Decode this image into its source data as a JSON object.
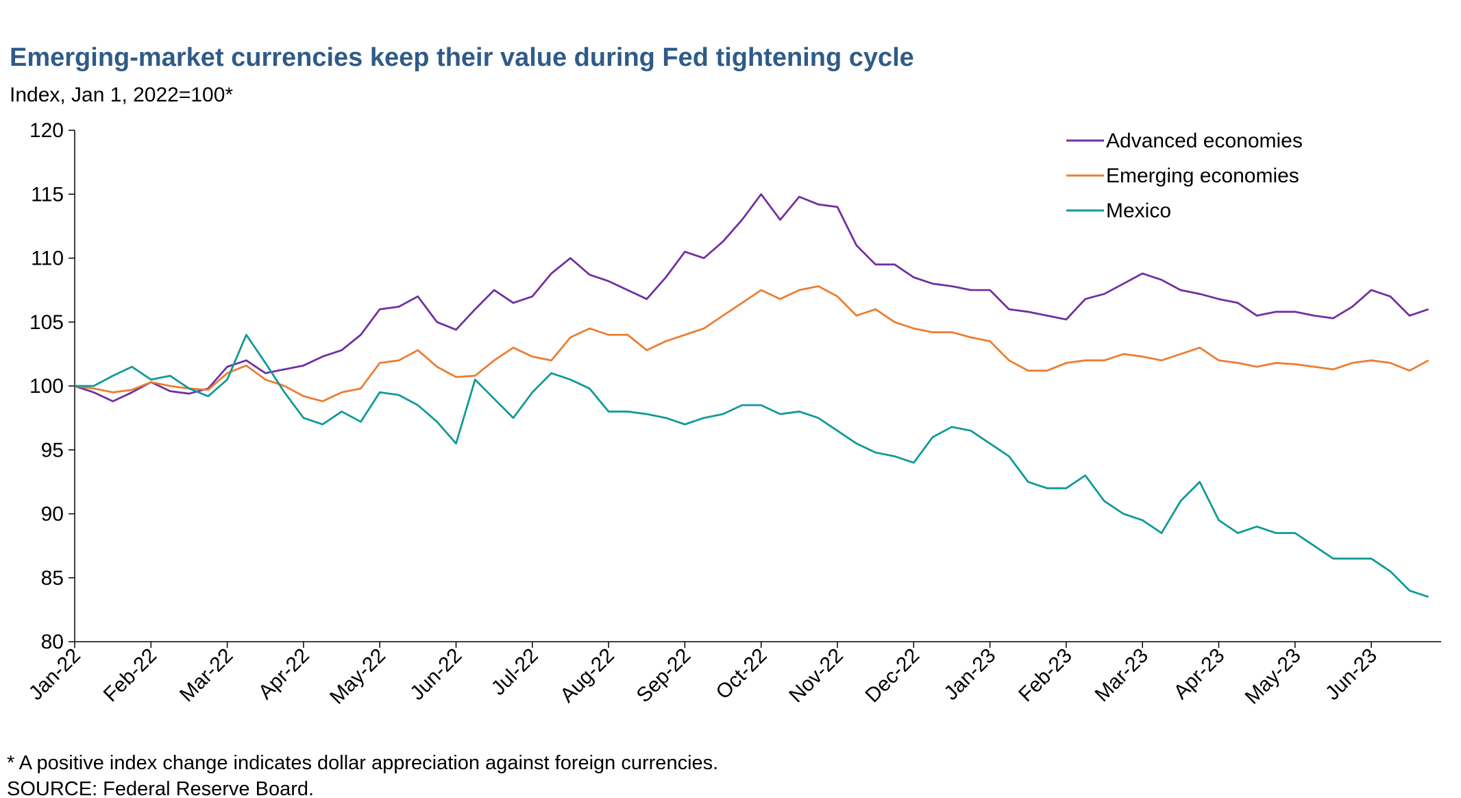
{
  "chart_data": {
    "type": "line",
    "title": "Emerging-market currencies keep their value during Fed tightening cycle",
    "subtitle": "Index, Jan 1, 2022=100*",
    "footnote": "* A positive index change indicates dollar appreciation against foreign currencies.",
    "source": "SOURCE: Federal Reserve Board.",
    "categories": [
      "Jan-22",
      null,
      null,
      null,
      "Feb-22",
      null,
      null,
      null,
      "Mar-22",
      null,
      null,
      null,
      "Apr-22",
      null,
      null,
      null,
      "May-22",
      null,
      null,
      null,
      "Jun-22",
      null,
      null,
      null,
      "Jul-22",
      null,
      null,
      null,
      "Aug-22",
      null,
      null,
      null,
      "Sep-22",
      null,
      null,
      null,
      "Oct-22",
      null,
      null,
      null,
      "Nov-22",
      null,
      null,
      null,
      "Dec-22",
      null,
      null,
      null,
      "Jan-23",
      null,
      null,
      null,
      "Feb-23",
      null,
      null,
      null,
      "Mar-23",
      null,
      null,
      null,
      "Apr-23",
      null,
      null,
      null,
      "May-23",
      null,
      null,
      null,
      "Jun-23",
      null,
      null,
      null
    ],
    "series": [
      {
        "name": "Advanced economies",
        "color": "#7030a0",
        "values": [
          100,
          99.5,
          98.8,
          99.5,
          100.3,
          99.6,
          99.4,
          99.8,
          101.5,
          102,
          101,
          101.3,
          101.6,
          102.3,
          102.8,
          104,
          106,
          106.2,
          107,
          105,
          104.4,
          106,
          107.5,
          106.5,
          107,
          108.8,
          110,
          108.7,
          108.2,
          107.5,
          106.8,
          108.5,
          110.5,
          110,
          111.3,
          113,
          115,
          113,
          114.8,
          114.2,
          114,
          111,
          109.5,
          109.5,
          108.5,
          108,
          107.8,
          107.5,
          107.5,
          106,
          105.8,
          105.5,
          105.2,
          106.8,
          107.2,
          108,
          108.8,
          108.3,
          107.5,
          107.2,
          106.8,
          106.5,
          105.5,
          105.8,
          105.8,
          105.5,
          105.3,
          106.2,
          107.5,
          107,
          105.5,
          106
        ]
      },
      {
        "name": "Emerging economies",
        "color": "#ed7d31",
        "values": [
          100,
          99.8,
          99.5,
          99.7,
          100.3,
          100,
          99.8,
          99.7,
          101,
          101.6,
          100.5,
          100,
          99.2,
          98.8,
          99.5,
          99.8,
          101.8,
          102,
          102.8,
          101.5,
          100.7,
          100.8,
          102,
          103,
          102.3,
          102,
          103.8,
          104.5,
          104,
          104,
          102.8,
          103.5,
          104,
          104.5,
          105.5,
          106.5,
          107.5,
          106.8,
          107.5,
          107.8,
          107,
          105.5,
          106,
          105,
          104.5,
          104.2,
          104.2,
          103.8,
          103.5,
          102,
          101.2,
          101.2,
          101.8,
          102,
          102,
          102.5,
          102.3,
          102,
          102.5,
          103,
          102,
          101.8,
          101.5,
          101.8,
          101.7,
          101.5,
          101.3,
          101.8,
          102,
          101.8,
          101.2,
          102
        ]
      },
      {
        "name": "Mexico",
        "color": "#0f9a98",
        "values": [
          100,
          100,
          100.8,
          101.5,
          100.5,
          100.8,
          99.8,
          99.2,
          100.5,
          104,
          101.8,
          99.5,
          97.5,
          97,
          98,
          97.2,
          99.5,
          99.3,
          98.5,
          97.2,
          95.5,
          100.5,
          99,
          97.5,
          99.5,
          101,
          100.5,
          99.8,
          98,
          98,
          97.8,
          97.5,
          97,
          97.5,
          97.8,
          98.5,
          98.5,
          97.8,
          98,
          97.5,
          96.5,
          95.5,
          94.8,
          94.5,
          94,
          96,
          96.8,
          96.5,
          95.5,
          94.5,
          92.5,
          92,
          92,
          93,
          91,
          90,
          89.5,
          88.5,
          91,
          92.5,
          89.5,
          88.5,
          89,
          88.5,
          88.5,
          87.5,
          86.5,
          86.5,
          86.5,
          85.5,
          84,
          83.5
        ]
      }
    ],
    "ylim": [
      80,
      120
    ],
    "yticks": [
      80,
      85,
      90,
      95,
      100,
      105,
      110,
      115,
      120
    ],
    "legend": "top-right"
  }
}
